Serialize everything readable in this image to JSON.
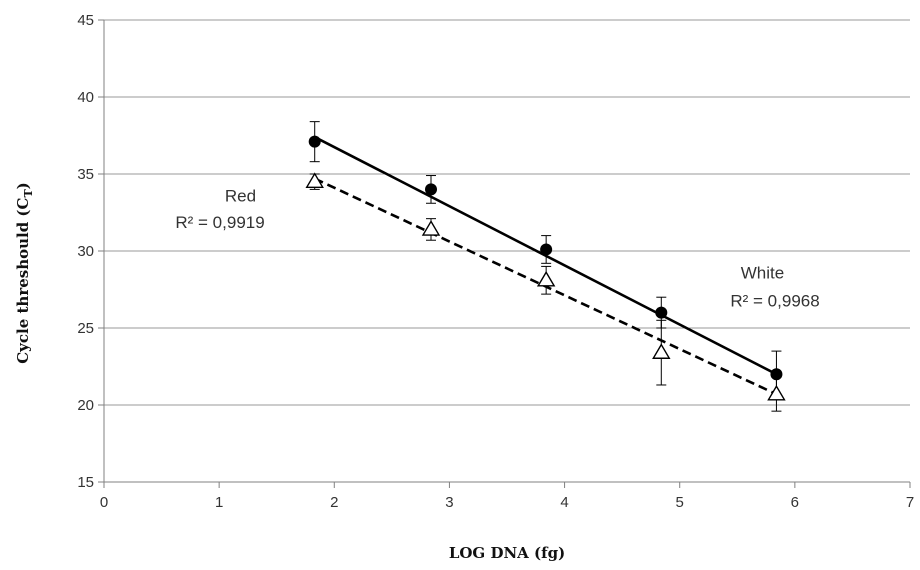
{
  "chart_data": {
    "type": "scatter",
    "xlabel": "LOG DNA (fg)",
    "ylabel": "Cycle threshould (C",
    "ylabel_sub": "T",
    "ylabel_close": ")",
    "xlim": [
      0,
      7
    ],
    "ylim": [
      15,
      45
    ],
    "x_ticks": [
      0,
      1,
      2,
      3,
      4,
      5,
      6,
      7
    ],
    "y_ticks": [
      15,
      20,
      25,
      30,
      35,
      40,
      45
    ],
    "grid": "horizontal",
    "series": [
      {
        "name": "White",
        "marker": "filled-circle",
        "line": "solid",
        "x": [
          1.83,
          2.84,
          3.84,
          4.84,
          5.84
        ],
        "y": [
          37.1,
          34.0,
          30.1,
          26.0,
          22.0
        ],
        "err": [
          1.3,
          0.9,
          0.9,
          1.0,
          1.5
        ],
        "fit": {
          "x": [
            1.83,
            5.84
          ],
          "y": [
            37.4,
            22.0
          ]
        },
        "r2_label": "R² = 0,9968"
      },
      {
        "name": "Red",
        "marker": "open-triangle",
        "line": "dashed",
        "x": [
          1.83,
          2.84,
          3.84,
          4.84,
          5.84
        ],
        "y": [
          34.5,
          31.4,
          28.1,
          23.4,
          20.7
        ],
        "err": [
          0.5,
          0.7,
          0.9,
          2.1,
          1.1
        ],
        "fit": {
          "x": [
            1.83,
            5.84
          ],
          "y": [
            34.7,
            20.7
          ]
        },
        "r2_label": "R² = 0,9919"
      }
    ],
    "annotations": [
      {
        "text": "Red",
        "x": 1.05,
        "y": 33.2
      },
      {
        "text": "R² = 0,9919",
        "x": 0.62,
        "y": 31.5
      },
      {
        "text": "White",
        "x": 5.53,
        "y": 28.2
      },
      {
        "text": "R² = 0,9968",
        "x": 5.44,
        "y": 26.4
      }
    ]
  }
}
